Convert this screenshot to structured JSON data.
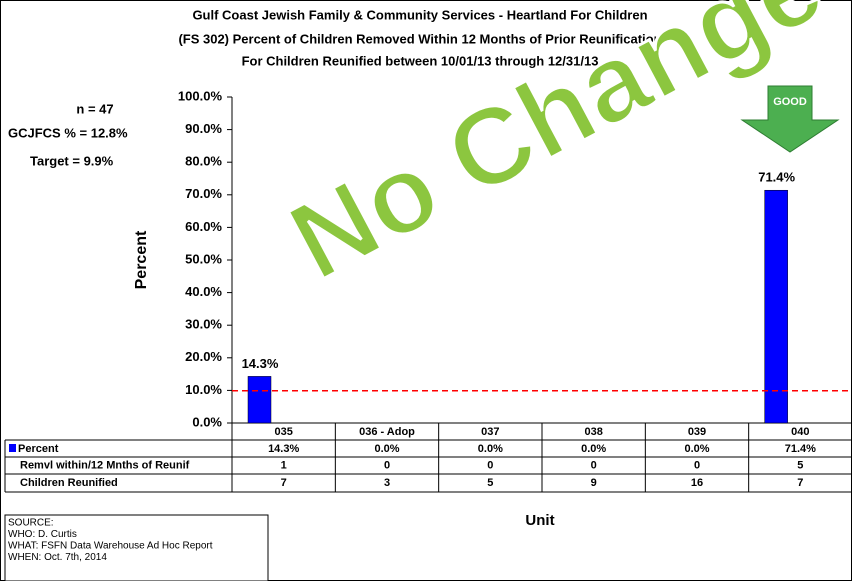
{
  "chart_data": {
    "type": "bar",
    "title_lines": [
      "Gulf Coast Jewish Family & Community Services - Heartland For Children",
      "(FS 302) Percent of Children Removed Within 12 Months of Prior Reunification",
      "For Children Reunified between 10/01/13 through 12/31/13"
    ],
    "categories": [
      "035",
      "036 - Adop",
      "037",
      "038",
      "039",
      "040"
    ],
    "series": [
      {
        "name": "Percent",
        "color": "#0000ff",
        "values": [
          14.3,
          0,
          0,
          0,
          0,
          71.4
        ],
        "value_labels": [
          "14.3%",
          "0.0%",
          "0.0%",
          "0.0%",
          "0.0%",
          "71.4%"
        ]
      }
    ],
    "ylim": [
      0,
      100
    ],
    "yticks": [
      {
        "value": 0,
        "label": "0.0%"
      },
      {
        "value": 10,
        "label": "10.0%"
      },
      {
        "value": 20,
        "label": "20.0%"
      },
      {
        "value": 30,
        "label": "30.0%"
      },
      {
        "value": 40,
        "label": "40.0%"
      },
      {
        "value": 50,
        "label": "50.0%"
      },
      {
        "value": 60,
        "label": "60.0%"
      },
      {
        "value": 70,
        "label": "70.0%"
      },
      {
        "value": 80,
        "label": "80.0%"
      },
      {
        "value": 90,
        "label": "90.0%"
      },
      {
        "value": 100,
        "label": "100.0%"
      }
    ],
    "y_label": "Percent",
    "x_label": "Unit",
    "target": 9.9,
    "target_color": "#ff0000",
    "annotations": {
      "n": "n =  47",
      "gcjfcs": "GCJFCS % = 12.8%",
      "target": "Target =  9.9%",
      "good": "GOOD",
      "watermark": "No Change"
    },
    "table_rows": [
      {
        "label": "Remvl within/12 Mnths of Reunif",
        "values": [
          1,
          0,
          0,
          0,
          0,
          5
        ]
      },
      {
        "label": "Children Reunified",
        "values": [
          7,
          3,
          5,
          9,
          16,
          7
        ]
      }
    ]
  },
  "source": [
    "SOURCE:",
    "WHO:  D. Curtis",
    "WHAT:  FSFN Data Warehouse Ad Hoc Report",
    "WHEN: Oct. 7th, 2014"
  ]
}
